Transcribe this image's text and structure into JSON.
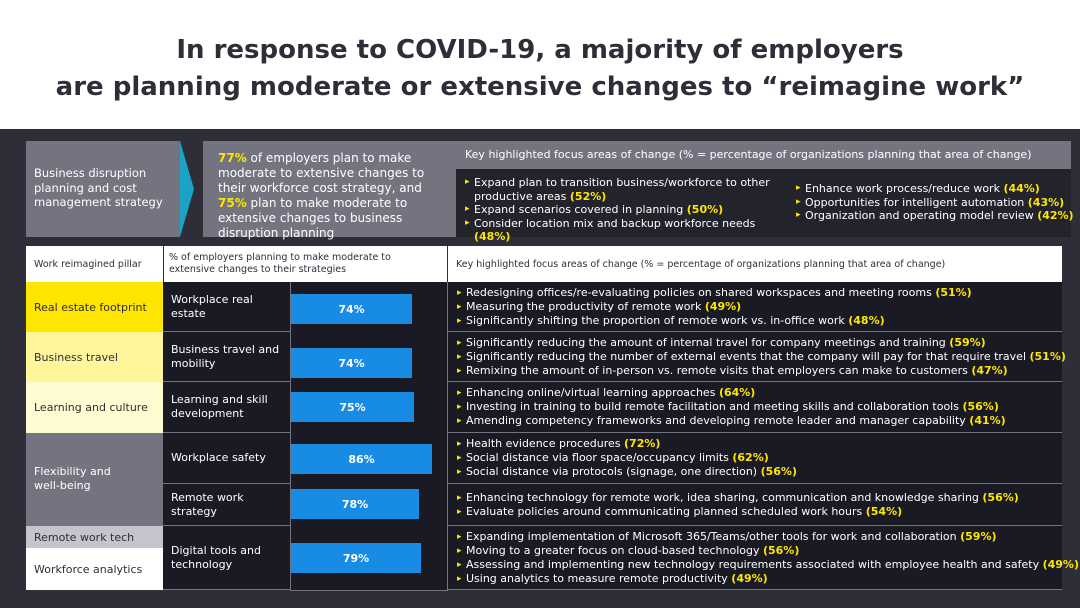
{
  "title": {
    "line1": "In response to COVID-19, a majority of employers",
    "line2": "are planning moderate or extensive changes to “reimagine work”"
  },
  "top": {
    "disruption_label": "Business disruption planning and cost management strategy",
    "summary": {
      "pct1": "77%",
      "text1": " of employers plan to make moderate to extensive changes to their workforce cost strategy, and ",
      "pct2": "75%",
      "text2": " plan to make moderate to extensive changes to business disruption planning"
    },
    "key_header": "Key highlighted focus areas of change (% = percentage of organizations planning that area of change)",
    "col1": [
      {
        "text": "Expand plan to transition business/workforce to other productive areas ",
        "pct": "(52%)"
      },
      {
        "text": "Expand scenarios covered in planning ",
        "pct": "(50%)"
      },
      {
        "text": "Consider location mix and backup workforce needs ",
        "pct": "(48%)"
      }
    ],
    "col2": [
      {
        "text": "Enhance work process/reduce work ",
        "pct": "(44%)"
      },
      {
        "text": "Opportunities for intelligent automation ",
        "pct": "(43%)"
      },
      {
        "text": "Organization and operating model review ",
        "pct": "(42%)"
      }
    ]
  },
  "table": {
    "headers": {
      "pillar": "Work reimagined pillar",
      "percent": "% of employers planning to make moderate to extensive changes to their strategies",
      "key": "Key highlighted focus areas of change (% = percentage of organizations planning that area of change)"
    },
    "pillars": [
      {
        "label": "Real estate footprint",
        "color": "#ffe600"
      },
      {
        "label": "Business travel",
        "color": "#fff59a"
      },
      {
        "label": "Learning and culture",
        "color": "#fffbd0"
      },
      {
        "label": "Flexibility and well-being",
        "color": "#747480"
      },
      {
        "label": "Remote work tech",
        "color": "#c4c4cd"
      },
      {
        "label": "Workforce analytics",
        "color": "#ffffff"
      }
    ],
    "rows": [
      {
        "action": "Workplace real estate",
        "value": 74,
        "label": "74%",
        "items": [
          {
            "text": "Redesigning offices/re-evaluating policies on shared workspaces and meeting rooms ",
            "pct": "(51%)"
          },
          {
            "text": "Measuring the productivity of remote work ",
            "pct": "(49%)"
          },
          {
            "text": "Significantly shifting the proportion of remote work vs. in-office work ",
            "pct": "(48%)"
          }
        ]
      },
      {
        "action": "Business travel and mobility",
        "value": 74,
        "label": "74%",
        "items": [
          {
            "text": "Significantly reducing the amount of internal travel for company meetings and training ",
            "pct": "(59%)"
          },
          {
            "text": "Significantly reducing the number of external events that the company will pay for that require travel ",
            "pct": "(51%)"
          },
          {
            "text": "Remixing the amount of in-person vs. remote visits that employers can make to customers ",
            "pct": "(47%)"
          }
        ]
      },
      {
        "action": "Learning and skill development",
        "value": 75,
        "label": "75%",
        "items": [
          {
            "text": "Enhancing online/virtual learning approaches ",
            "pct": "(64%)"
          },
          {
            "text": "Investing in training to build remote facilitation and meeting skills and collaboration tools ",
            "pct": "(56%)"
          },
          {
            "text": "Amending competency frameworks and developing remote leader and manager capability ",
            "pct": "(41%)"
          }
        ]
      },
      {
        "action": "Workplace safety",
        "value": 86,
        "label": "86%",
        "items": [
          {
            "text": "Health evidence procedures ",
            "pct": "(72%)"
          },
          {
            "text": "Social distance via floor space/occupancy limits ",
            "pct": "(62%)"
          },
          {
            "text": "Social distance via protocols (signage, one direction) ",
            "pct": "(56%)"
          }
        ]
      },
      {
        "action": "Remote work strategy",
        "value": 78,
        "label": "78%",
        "items": [
          {
            "text": "Enhancing technology for remote work, idea sharing, communication and knowledge sharing ",
            "pct": "(56%)"
          },
          {
            "text": "Evaluate policies around communicating planned scheduled work hours ",
            "pct": "(54%)"
          }
        ]
      },
      {
        "action": "Digital tools and technology",
        "value": 79,
        "label": "79%",
        "items": [
          {
            "text": "Expanding implementation of Microsoft 365/Teams/other tools for work and collaboration ",
            "pct": "(59%)"
          },
          {
            "text": "Moving to a greater focus on cloud-based technology ",
            "pct": "(56%)"
          },
          {
            "text": "Assessing and implementing new technology requirements associated with employee health and safety ",
            "pct": "(49%)"
          },
          {
            "text": "Using analytics to measure remote productivity ",
            "pct": "(49%)"
          }
        ]
      }
    ]
  },
  "colors": {
    "accent": "#ffe600",
    "bar": "#188ce5",
    "chevron": "#1aa3c5"
  }
}
